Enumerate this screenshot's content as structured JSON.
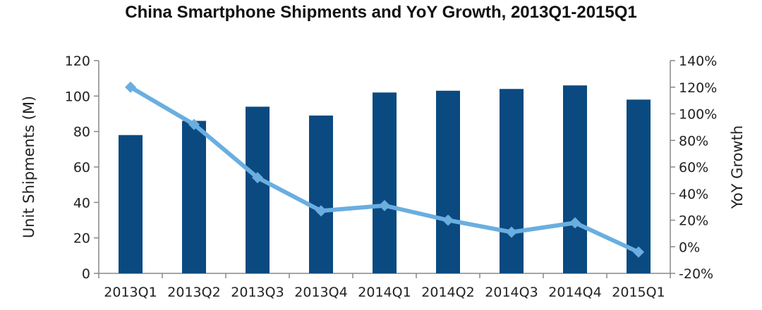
{
  "chart_data": {
    "type": "bar",
    "title": "China Smartphone Shipments and YoY Growth, 2013Q1-2015Q1",
    "categories": [
      "2013Q1",
      "2013Q2",
      "2013Q3",
      "2013Q4",
      "2014Q1",
      "2014Q2",
      "2014Q3",
      "2014Q4",
      "2015Q1"
    ],
    "series": [
      {
        "name": "",
        "type": "bar",
        "axis": "left",
        "color": "#0a4a80",
        "values": [
          78,
          86,
          94,
          89,
          102,
          103,
          104,
          106,
          98
        ]
      },
      {
        "name": "",
        "type": "line",
        "axis": "right",
        "color": "#6aaee0",
        "values": [
          120,
          92,
          52,
          27,
          31,
          20,
          11,
          18,
          -4
        ]
      }
    ],
    "ylabel": "Unit Shipments (M)",
    "y2label": "YoY Growth",
    "ylim": [
      0,
      120
    ],
    "y2lim": [
      -20,
      140
    ],
    "yticks": [
      "0",
      "20",
      "40",
      "60",
      "80",
      "100",
      "120"
    ],
    "y2ticks": [
      "-20%",
      "0%",
      "20%",
      "40%",
      "60%",
      "80%",
      "100%",
      "120%",
      "140%"
    ],
    "grid": false,
    "legend": "none"
  }
}
